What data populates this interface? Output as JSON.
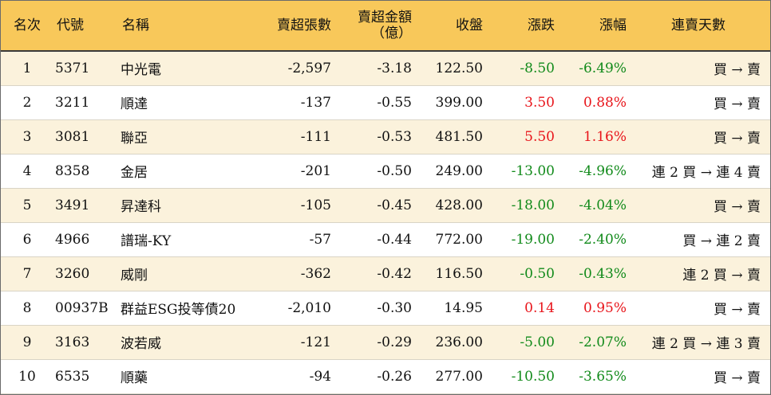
{
  "table": {
    "headers": {
      "rank": "名次",
      "code": "代號",
      "name": "名稱",
      "net_shares": "賣超張數",
      "net_amount_line1": "賣超金額",
      "net_amount_line2": "（億）",
      "close": "收盤",
      "change": "漲跌",
      "pct": "漲幅",
      "streak": "連賣天數"
    },
    "rows": [
      {
        "rank": "1",
        "code": "5371",
        "name": "中光電",
        "net_shares": "-2,597",
        "net_amount": "-3.18",
        "close": "122.50",
        "change": "-8.50",
        "pct": "-6.49%",
        "direction": "down",
        "streak": "買 → 賣"
      },
      {
        "rank": "2",
        "code": "3211",
        "name": "順達",
        "net_shares": "-137",
        "net_amount": "-0.55",
        "close": "399.00",
        "change": "3.50",
        "pct": "0.88%",
        "direction": "up",
        "streak": "買 → 賣"
      },
      {
        "rank": "3",
        "code": "3081",
        "name": "聯亞",
        "net_shares": "-111",
        "net_amount": "-0.53",
        "close": "481.50",
        "change": "5.50",
        "pct": "1.16%",
        "direction": "up",
        "streak": "買 → 賣"
      },
      {
        "rank": "4",
        "code": "8358",
        "name": "金居",
        "net_shares": "-201",
        "net_amount": "-0.50",
        "close": "249.00",
        "change": "-13.00",
        "pct": "-4.96%",
        "direction": "down",
        "streak": "連 2 買 → 連 4 賣"
      },
      {
        "rank": "5",
        "code": "3491",
        "name": "昇達科",
        "net_shares": "-105",
        "net_amount": "-0.45",
        "close": "428.00",
        "change": "-18.00",
        "pct": "-4.04%",
        "direction": "down",
        "streak": "買 → 賣"
      },
      {
        "rank": "6",
        "code": "4966",
        "name": "譜瑞-KY",
        "net_shares": "-57",
        "net_amount": "-0.44",
        "close": "772.00",
        "change": "-19.00",
        "pct": "-2.40%",
        "direction": "down",
        "streak": "買 → 連 2 賣"
      },
      {
        "rank": "7",
        "code": "3260",
        "name": "威剛",
        "net_shares": "-362",
        "net_amount": "-0.42",
        "close": "116.50",
        "change": "-0.50",
        "pct": "-0.43%",
        "direction": "down",
        "streak": "連 2 買 → 賣"
      },
      {
        "rank": "8",
        "code": "00937B",
        "name": "群益ESG投等債20",
        "net_shares": "-2,010",
        "net_amount": "-0.30",
        "close": "14.95",
        "change": "0.14",
        "pct": "0.95%",
        "direction": "up",
        "streak": "買 → 賣"
      },
      {
        "rank": "9",
        "code": "3163",
        "name": "波若威",
        "net_shares": "-121",
        "net_amount": "-0.29",
        "close": "236.00",
        "change": "-5.00",
        "pct": "-2.07%",
        "direction": "down",
        "streak": "連 2 買 → 連 3 賣"
      },
      {
        "rank": "10",
        "code": "6535",
        "name": "順藥",
        "net_shares": "-94",
        "net_amount": "-0.26",
        "close": "277.00",
        "change": "-10.50",
        "pct": "-3.65%",
        "direction": "down",
        "streak": "買 → 賣"
      }
    ]
  },
  "colors": {
    "header_bg": "#f8c85a",
    "odd_row_bg": "#fbf2dc",
    "up": "#e8141a",
    "down": "#118a1a"
  }
}
